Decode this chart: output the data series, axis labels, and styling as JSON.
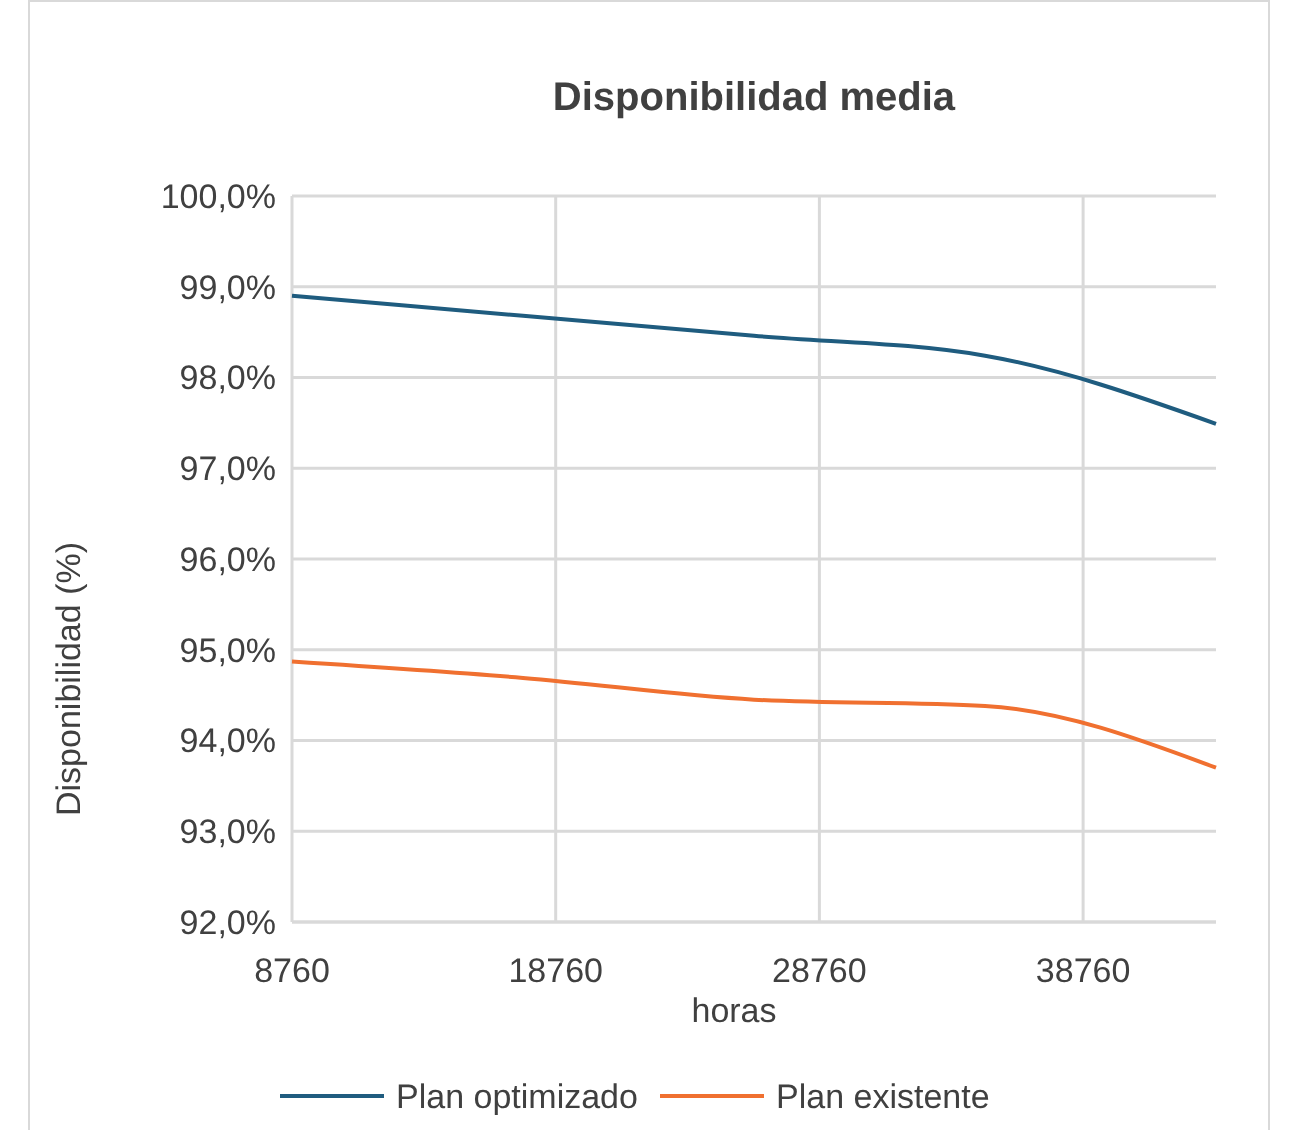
{
  "chart_data": {
    "type": "line",
    "title": "Disponibilidad media",
    "xlabel": "horas",
    "ylabel": "Disponibilidad (%)",
    "x": [
      8760,
      17520,
      26280,
      35040,
      43800
    ],
    "series": [
      {
        "name": "Plan optimizado",
        "color": "#1f5c7f",
        "values": [
          98.9,
          98.68,
          98.46,
          98.24,
          97.49
        ]
      },
      {
        "name": "Plan existente",
        "color": "#f07030",
        "values": [
          94.87,
          94.69,
          94.45,
          94.38,
          93.7
        ]
      }
    ],
    "xlim": [
      8760,
      43800
    ],
    "xticks": [
      8760,
      18760,
      28760,
      38760
    ],
    "ylim": [
      92,
      100
    ],
    "yticks": [
      {
        "value": 92,
        "label": "92,0%"
      },
      {
        "value": 93,
        "label": "93,0%"
      },
      {
        "value": 94,
        "label": "94,0%"
      },
      {
        "value": 95,
        "label": "95,0%"
      },
      {
        "value": 96,
        "label": "96,0%"
      },
      {
        "value": 97,
        "label": "97,0%"
      },
      {
        "value": 98,
        "label": "98,0%"
      },
      {
        "value": 99,
        "label": "99,0%"
      },
      {
        "value": 100,
        "label": "100,0%"
      }
    ],
    "grid": true,
    "legend": "bottom",
    "marker": "none",
    "line_style": "solid"
  }
}
